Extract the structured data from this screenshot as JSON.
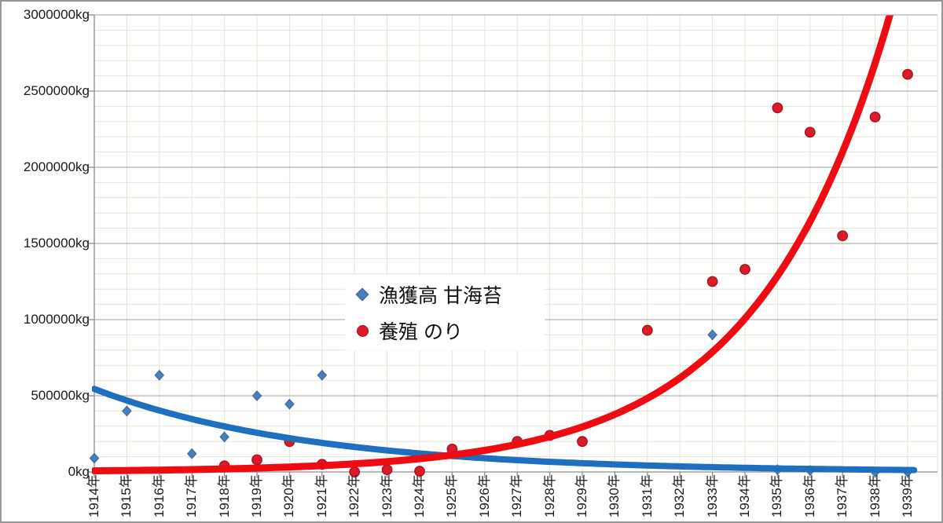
{
  "chart_data": {
    "type": "scatter",
    "title": "",
    "x_axis": {
      "start_year": 1914,
      "end_year": 1939,
      "tick_labels": [
        "1914年",
        "1915年",
        "1916年",
        "1917年",
        "1918年",
        "1919年",
        "1920年",
        "1921年",
        "1922年",
        "1923年",
        "1924年",
        "1925年",
        "1926年",
        "1927年",
        "1928年",
        "1929年",
        "1930年",
        "1931年",
        "1932年",
        "1933年",
        "1934年",
        "1935年",
        "1936年",
        "1937年",
        "1938年",
        "1939年"
      ]
    },
    "y_axis": {
      "min": 0,
      "max": 3000000,
      "major_unit": 500000,
      "minor_unit": 100000,
      "unit": "kg",
      "tick_labels": [
        "0kg",
        "500000kg",
        "1000000kg",
        "1500000kg",
        "2000000kg",
        "2500000kg",
        "3000000kg"
      ]
    },
    "grid": {
      "minor_color": "#e5e3d2",
      "major_color": "#b3b3b3",
      "axis_color": "#8c8c8c",
      "background": "#ffffff"
    },
    "legend": {
      "position": "center-left",
      "entries": [
        "漁獲高 甘海苔",
        "養殖 のり"
      ]
    },
    "series": [
      {
        "name": "漁獲高 甘海苔",
        "marker": "diamond",
        "marker_color": "#4a7ebb",
        "marker_border": "#38679c",
        "points": [
          {
            "year": 1914,
            "value": 90000
          },
          {
            "year": 1915,
            "value": 400000
          },
          {
            "year": 1916,
            "value": 635000
          },
          {
            "year": 1917,
            "value": 120000
          },
          {
            "year": 1918,
            "value": 230000
          },
          {
            "year": 1919,
            "value": 500000
          },
          {
            "year": 1920,
            "value": 445000
          },
          {
            "year": 1921,
            "value": 635000
          },
          {
            "year": 1933,
            "value": 900000
          },
          {
            "year": 1935,
            "value": 15000
          },
          {
            "year": 1936,
            "value": 10000
          },
          {
            "year": 1938,
            "value": 0
          },
          {
            "year": 1939,
            "value": 0
          }
        ]
      },
      {
        "name": "養殖 のり",
        "marker": "circle",
        "marker_color": "#d91b2a",
        "marker_border": "#a81320",
        "points": [
          {
            "year": 1918,
            "value": 40000
          },
          {
            "year": 1919,
            "value": 80000
          },
          {
            "year": 1920,
            "value": 200000
          },
          {
            "year": 1921,
            "value": 50000
          },
          {
            "year": 1922,
            "value": 0
          },
          {
            "year": 1923,
            "value": 15000
          },
          {
            "year": 1924,
            "value": 5000
          },
          {
            "year": 1925,
            "value": 150000
          },
          {
            "year": 1927,
            "value": 200000
          },
          {
            "year": 1928,
            "value": 240000
          },
          {
            "year": 1929,
            "value": 200000
          },
          {
            "year": 1931,
            "value": 930000
          },
          {
            "year": 1933,
            "value": 1250000
          },
          {
            "year": 1934,
            "value": 1330000
          },
          {
            "year": 1935,
            "value": 2390000
          },
          {
            "year": 1936,
            "value": 2230000
          },
          {
            "year": 1937,
            "value": 1550000
          },
          {
            "year": 1938,
            "value": 2330000
          },
          {
            "year": 1939,
            "value": 2610000
          }
        ]
      }
    ],
    "trendlines": [
      {
        "series": "漁獲高 甘海苔",
        "model": "exponential",
        "color": "#1e6fbf",
        "stroke_width": 8,
        "a": 545000,
        "k": -0.15,
        "t_start": 0,
        "t_end": 25.2
      },
      {
        "series": "養殖 のり",
        "model": "exponential",
        "color": "#ee0b12",
        "stroke_width": 9,
        "a": 7500,
        "k": 0.245,
        "t_start": 0,
        "t_end": 25.0
      }
    ]
  }
}
